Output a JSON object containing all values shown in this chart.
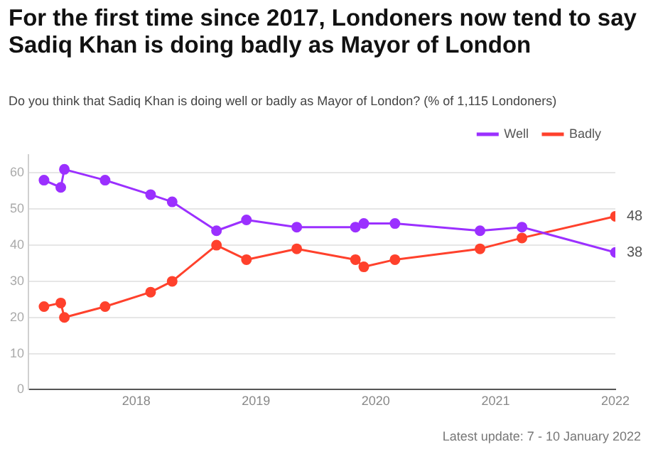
{
  "chart_data": {
    "type": "line",
    "title": "For the first time since 2017, Londoners now tend to say Sadiq Khan is doing badly as Mayor of London",
    "subtitle": "Do you think that Sadiq Khan is doing well or badly as Mayor of London? (% of 1,115 Londoners)",
    "x": [
      2017.23,
      2017.37,
      2017.4,
      2017.74,
      2018.12,
      2018.3,
      2018.67,
      2018.92,
      2019.34,
      2019.83,
      2019.9,
      2020.16,
      2020.87,
      2021.22,
      2022.0
    ],
    "series": [
      {
        "name": "Well",
        "color": "#9b30ff",
        "values": [
          58,
          56,
          61,
          58,
          54,
          52,
          44,
          47,
          45,
          45,
          46,
          46,
          44,
          45,
          38
        ],
        "value_labels": [
          null,
          null,
          null,
          null,
          null,
          null,
          null,
          null,
          null,
          null,
          null,
          null,
          null,
          null,
          "38"
        ]
      },
      {
        "name": "Badly",
        "color": "#ff412c",
        "values": [
          23,
          24,
          20,
          23,
          27,
          30,
          40,
          36,
          39,
          36,
          34,
          36,
          39,
          42,
          48
        ],
        "value_labels": [
          null,
          null,
          null,
          null,
          null,
          null,
          null,
          null,
          null,
          null,
          null,
          null,
          null,
          null,
          "48"
        ]
      }
    ],
    "xlim": [
      2017.1,
      2022
    ],
    "xticks": [
      2018,
      2019,
      2020,
      2021,
      2022
    ],
    "ylim": [
      0,
      65
    ],
    "yticks": [
      0,
      10,
      20,
      30,
      40,
      50,
      60
    ],
    "grid": "y",
    "legend": "top right",
    "marker": "circle",
    "line_style": "solid",
    "annotations": [
      "Latest update: 7 - 10 January 2022"
    ]
  }
}
